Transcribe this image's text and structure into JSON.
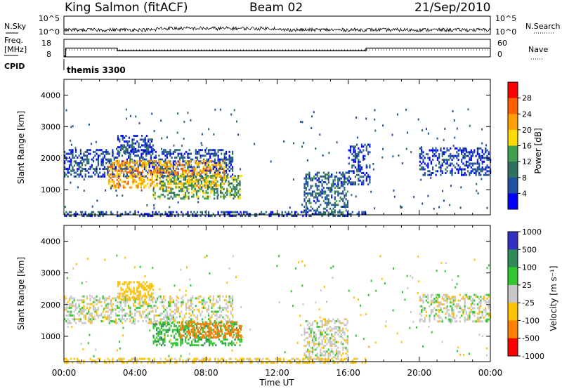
{
  "header": {
    "station": "King Salmon (fitACF)",
    "beam": "Beam 02",
    "date": "21/Sep/2010"
  },
  "top_panels": {
    "nsky_label": "N.Sky",
    "nsearch_label": "N.Search",
    "n_ticks_left": [
      "10^5",
      "10^0"
    ],
    "n_ticks_right": [
      "10^5",
      "10^0"
    ],
    "freq_label_line1": "Freq.",
    "freq_label_line2": "[MHz]",
    "freq_ticks": [
      "18",
      "8"
    ],
    "nave_label": "Nave",
    "nave_ticks": [
      "60",
      "0"
    ],
    "cpid_label": "CPID",
    "cpid_value": "themis 3300"
  },
  "colorbars": {
    "power": {
      "label": "Power [dB]",
      "ticks": [
        "28",
        "24",
        "20",
        "16",
        "12",
        "8",
        "4"
      ],
      "colors": [
        "#ff0000",
        "#ff6000",
        "#ffa000",
        "#ffdc00",
        "#40a050",
        "#307060",
        "#2050a0",
        "#0000ff"
      ]
    },
    "velocity": {
      "label": "Velocity [m s⁻¹]",
      "ticks": [
        "1000",
        "500",
        "100",
        "25",
        "-25",
        "-100",
        "-500",
        "-1000"
      ],
      "colors": [
        "#3030c0",
        "#2e8b57",
        "#30c830",
        "#c8c8c8",
        "#ffc000",
        "#ff8000",
        "#ff0000"
      ]
    }
  },
  "chart_data": [
    {
      "type": "heatmap",
      "name": "power",
      "xlabel": "",
      "ylabel": "Slant Range [km]",
      "xlim": [
        "00:00",
        "24:00"
      ],
      "ylim": [
        200,
        4500
      ],
      "yticks": [
        "1000",
        "2000",
        "3000",
        "4000"
      ],
      "colorbar": "Power [dB]",
      "regions": [
        {
          "t0": 0.0,
          "t1": 9.5,
          "r0": 1450,
          "r1": 2350,
          "value": 6
        },
        {
          "t0": 2.5,
          "t1": 9.0,
          "r0": 1100,
          "r1": 2000,
          "value": 22
        },
        {
          "t0": 3.0,
          "t1": 5.0,
          "r0": 2200,
          "r1": 2800,
          "value": 6
        },
        {
          "t0": 5.0,
          "t1": 10.0,
          "r0": 750,
          "r1": 1500,
          "value": 14
        },
        {
          "t0": 13.5,
          "t1": 16.0,
          "r0": 250,
          "r1": 1600,
          "value": 8
        },
        {
          "t0": 16.0,
          "t1": 17.2,
          "r0": 1200,
          "r1": 2500,
          "value": 6
        },
        {
          "t0": 20.0,
          "t1": 24.0,
          "r0": 1500,
          "r1": 2400,
          "value": 5
        },
        {
          "t0": 0.0,
          "t1": 17.0,
          "r0": 200,
          "r1": 350,
          "value": 6
        }
      ]
    },
    {
      "type": "heatmap",
      "name": "velocity",
      "xlabel": "Time UT",
      "ylabel": "Slant Range [km]",
      "xlim": [
        "00:00",
        "24:00"
      ],
      "ylim": [
        200,
        4500
      ],
      "xticks": [
        "00:00",
        "04:00",
        "08:00",
        "12:00",
        "16:00",
        "20:00",
        "00:00"
      ],
      "yticks": [
        "1000",
        "2000",
        "3000",
        "4000"
      ],
      "colorbar": "Velocity [m s⁻¹]",
      "regions": [
        {
          "t0": 0.0,
          "t1": 9.5,
          "r0": 1450,
          "r1": 2350,
          "value": 0
        },
        {
          "t0": 3.0,
          "t1": 5.0,
          "r0": 2200,
          "r1": 2800,
          "value": -60
        },
        {
          "t0": 5.0,
          "t1": 10.0,
          "r0": 750,
          "r1": 1500,
          "value": 80
        },
        {
          "t0": 6.5,
          "t1": 10.0,
          "r0": 1000,
          "r1": 1500,
          "value": -200
        },
        {
          "t0": 13.5,
          "t1": 16.0,
          "r0": 250,
          "r1": 1600,
          "value": 0
        },
        {
          "t0": 20.0,
          "t1": 24.0,
          "r0": 1500,
          "r1": 2400,
          "value": 0
        },
        {
          "t0": 0.0,
          "t1": 17.0,
          "r0": 200,
          "r1": 350,
          "value": -50
        }
      ]
    },
    {
      "type": "line",
      "name": "frequency",
      "ylabel": "Freq. [MHz]",
      "ylim": [
        8,
        18
      ],
      "x": [
        0.0,
        0.1,
        3.0,
        17.0,
        24.0
      ],
      "values": [
        8.5,
        13.0,
        11.5,
        13.0,
        13.0
      ]
    }
  ]
}
